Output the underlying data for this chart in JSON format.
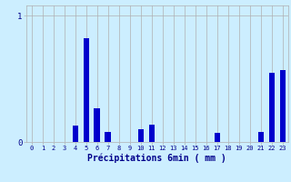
{
  "xlabel": "Précipitations 6min ( mm )",
  "background_color": "#cceeff",
  "bar_color": "#0000cc",
  "grid_color": "#b0b0b0",
  "text_color": "#00008b",
  "xlim": [
    -0.5,
    23.5
  ],
  "ylim": [
    0,
    1.08
  ],
  "yticks": [
    0,
    1
  ],
  "ytick_labels": [
    "0",
    "1"
  ],
  "xticks": [
    0,
    1,
    2,
    3,
    4,
    5,
    6,
    7,
    8,
    9,
    10,
    11,
    12,
    13,
    14,
    15,
    16,
    17,
    18,
    19,
    20,
    21,
    22,
    23
  ],
  "values": [
    0,
    0,
    0,
    0,
    0.13,
    0.82,
    0.27,
    0.08,
    0,
    0,
    0.1,
    0.14,
    0,
    0,
    0,
    0,
    0,
    0.07,
    0,
    0,
    0,
    0.08,
    0.55,
    0.57
  ],
  "bar_width": 0.55
}
